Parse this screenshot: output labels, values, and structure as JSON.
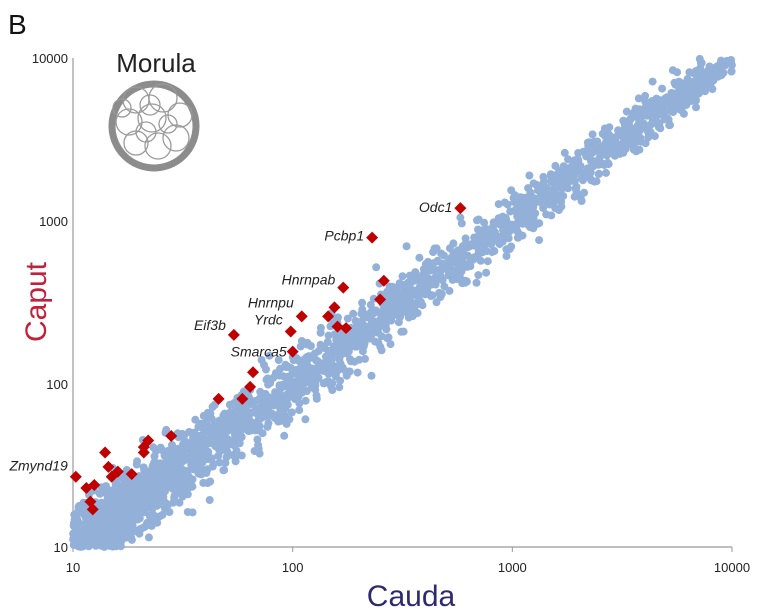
{
  "panel_label": "B",
  "inset": {
    "title": "Morula"
  },
  "colors": {
    "background_points": "#93b0d9",
    "highlight_points": "#c00000",
    "axis": "#999999",
    "xlabel": "#2e2a6e",
    "ylabel": "#c0223b"
  },
  "chart_data": {
    "type": "scatter",
    "xlabel": "Cauda",
    "ylabel": "Caput",
    "xscale": "log",
    "yscale": "log",
    "xlim": [
      10,
      10000
    ],
    "ylim": [
      10,
      10000
    ],
    "xticks": [
      "10",
      "100",
      "1000",
      "10000"
    ],
    "yticks": [
      "10",
      "100",
      "1000",
      "10000"
    ],
    "grid": false,
    "legend": "none",
    "series": [
      {
        "marker": "circle",
        "color": "#93b0d9",
        "trend": {
          "min": 10,
          "max": 9500,
          "spread_log10": 0.09
        },
        "extra_points": [
          [
            9500,
            9600
          ],
          [
            6200,
            6300
          ],
          [
            6000,
            6700
          ],
          [
            5300,
            6100
          ],
          [
            4100,
            4700
          ],
          [
            580,
            1050
          ],
          [
            330,
            700
          ],
          [
            240,
            520
          ],
          [
            520,
            680
          ],
          [
            800,
            760
          ],
          [
            150,
            160
          ],
          [
            110,
            105
          ],
          [
            35,
            26
          ],
          [
            60,
            90
          ],
          [
            12,
            15
          ],
          [
            70,
            40
          ]
        ]
      },
      {
        "marker": "diamond",
        "color": "#c00000",
        "points": [
          {
            "x": 580,
            "y": 1200,
            "label": "Odc1"
          },
          {
            "x": 230,
            "y": 790,
            "label": "Pcbp1"
          },
          {
            "x": 170,
            "y": 390,
            "label": "Hnrnpab"
          },
          {
            "x": 110,
            "y": 260,
            "label": "Hnrnpu"
          },
          {
            "x": 98,
            "y": 210,
            "label": "Yrdc"
          },
          {
            "x": 54,
            "y": 200,
            "label": "Eif3b"
          },
          {
            "x": 100,
            "y": 158,
            "label": "Smarca5"
          },
          {
            "x": 10.3,
            "y": 27,
            "label": "Zmynd19"
          },
          {
            "x": 260,
            "y": 430,
            "label": ""
          },
          {
            "x": 250,
            "y": 330,
            "label": ""
          },
          {
            "x": 155,
            "y": 295,
            "label": ""
          },
          {
            "x": 145,
            "y": 260,
            "label": ""
          },
          {
            "x": 160,
            "y": 225,
            "label": ""
          },
          {
            "x": 175,
            "y": 220,
            "label": ""
          },
          {
            "x": 66,
            "y": 118,
            "label": ""
          },
          {
            "x": 64,
            "y": 96,
            "label": ""
          },
          {
            "x": 59,
            "y": 81,
            "label": ""
          },
          {
            "x": 46,
            "y": 81,
            "label": ""
          },
          {
            "x": 28,
            "y": 48,
            "label": ""
          },
          {
            "x": 22,
            "y": 45,
            "label": ""
          },
          {
            "x": 21,
            "y": 41,
            "label": ""
          },
          {
            "x": 21,
            "y": 38,
            "label": ""
          },
          {
            "x": 14,
            "y": 38,
            "label": ""
          },
          {
            "x": 14.5,
            "y": 31,
            "label": ""
          },
          {
            "x": 16,
            "y": 29,
            "label": ""
          },
          {
            "x": 15,
            "y": 27,
            "label": ""
          },
          {
            "x": 18.5,
            "y": 28,
            "label": ""
          },
          {
            "x": 12.5,
            "y": 24,
            "label": ""
          },
          {
            "x": 11.5,
            "y": 23,
            "label": ""
          },
          {
            "x": 12,
            "y": 19,
            "label": ""
          },
          {
            "x": 12.3,
            "y": 17,
            "label": ""
          }
        ]
      }
    ]
  }
}
